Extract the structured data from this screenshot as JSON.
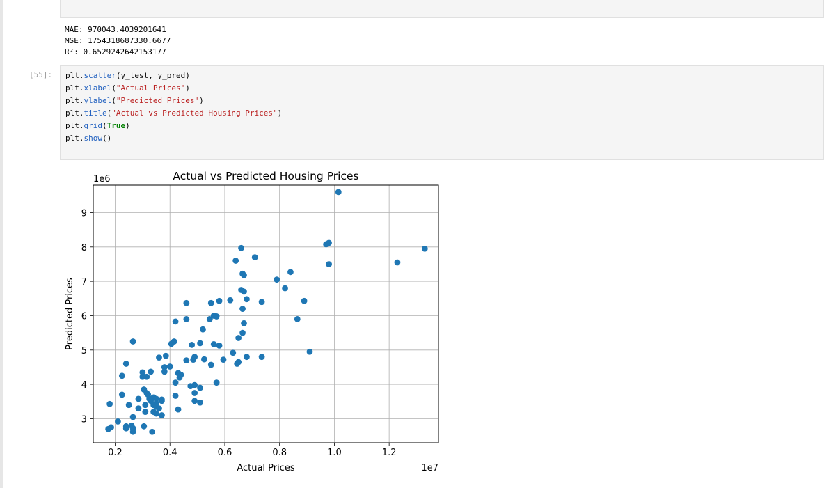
{
  "output": {
    "mae": "MAE: 970043.4039201641",
    "mse": "MSE: 1754318687330.6677",
    "r2": "R²: 0.6529242642153177"
  },
  "cell": {
    "prompt": "[55]:",
    "lines": [
      [
        {
          "t": "plt",
          "c": "obj"
        },
        {
          "t": ".",
          "c": "punct"
        },
        {
          "t": "scatter",
          "c": "fn"
        },
        {
          "t": "(y_test, y_pred)",
          "c": "punct"
        }
      ],
      [
        {
          "t": "plt",
          "c": "obj"
        },
        {
          "t": ".",
          "c": "punct"
        },
        {
          "t": "xlabel",
          "c": "fn"
        },
        {
          "t": "(",
          "c": "punct"
        },
        {
          "t": "\"Actual Prices\"",
          "c": "str"
        },
        {
          "t": ")",
          "c": "punct"
        }
      ],
      [
        {
          "t": "plt",
          "c": "obj"
        },
        {
          "t": ".",
          "c": "punct"
        },
        {
          "t": "ylabel",
          "c": "fn"
        },
        {
          "t": "(",
          "c": "punct"
        },
        {
          "t": "\"Predicted Prices\"",
          "c": "str"
        },
        {
          "t": ")",
          "c": "punct"
        }
      ],
      [
        {
          "t": "plt",
          "c": "obj"
        },
        {
          "t": ".",
          "c": "punct"
        },
        {
          "t": "title",
          "c": "fn"
        },
        {
          "t": "(",
          "c": "punct"
        },
        {
          "t": "\"Actual vs Predicted Housing Prices\"",
          "c": "str"
        },
        {
          "t": ")",
          "c": "punct"
        }
      ],
      [
        {
          "t": "plt",
          "c": "obj"
        },
        {
          "t": ".",
          "c": "punct"
        },
        {
          "t": "grid",
          "c": "fn"
        },
        {
          "t": "(",
          "c": "punct"
        },
        {
          "t": "True",
          "c": "kw"
        },
        {
          "t": ")",
          "c": "punct"
        }
      ],
      [
        {
          "t": "plt",
          "c": "obj"
        },
        {
          "t": ".",
          "c": "punct"
        },
        {
          "t": "show",
          "c": "fn"
        },
        {
          "t": "()",
          "c": "punct"
        }
      ]
    ]
  },
  "chart_data": {
    "type": "scatter",
    "title": "Actual vs Predicted Housing Prices",
    "xlabel": "Actual Prices",
    "ylabel": "Predicted Prices",
    "x_offset_label": "1e7",
    "y_offset_label": "1e6",
    "xlim": [
      0.12,
      1.38
    ],
    "ylim": [
      2.3,
      9.8
    ],
    "xticks": [
      0.2,
      0.4,
      0.6,
      0.8,
      1.0,
      1.2
    ],
    "xtick_labels": [
      "0.2",
      "0.4",
      "0.6",
      "0.8",
      "1.0",
      "1.2"
    ],
    "yticks": [
      3,
      4,
      5,
      6,
      7,
      8,
      9
    ],
    "ytick_labels": [
      "3",
      "4",
      "5",
      "6",
      "7",
      "8",
      "9"
    ],
    "grid": true,
    "marker_color": "#1f77b4",
    "points": [
      [
        1.015,
        9.6
      ],
      [
        1.33,
        7.95
      ],
      [
        1.23,
        7.55
      ],
      [
        0.98,
        8.12
      ],
      [
        0.97,
        8.08
      ],
      [
        0.98,
        7.5
      ],
      [
        0.66,
        7.97
      ],
      [
        0.71,
        7.7
      ],
      [
        0.64,
        7.6
      ],
      [
        0.84,
        7.27
      ],
      [
        0.79,
        7.05
      ],
      [
        0.82,
        6.8
      ],
      [
        0.665,
        7.22
      ],
      [
        0.67,
        7.18
      ],
      [
        0.66,
        6.75
      ],
      [
        0.67,
        6.7
      ],
      [
        0.68,
        6.48
      ],
      [
        0.62,
        6.45
      ],
      [
        0.58,
        6.43
      ],
      [
        0.55,
        6.37
      ],
      [
        0.46,
        6.37
      ],
      [
        0.735,
        6.4
      ],
      [
        0.89,
        6.43
      ],
      [
        0.665,
        6.2
      ],
      [
        0.56,
        6.0
      ],
      [
        0.57,
        5.98
      ],
      [
        0.545,
        5.9
      ],
      [
        0.46,
        5.9
      ],
      [
        0.42,
        5.83
      ],
      [
        0.865,
        5.9
      ],
      [
        0.67,
        5.78
      ],
      [
        0.52,
        5.6
      ],
      [
        0.665,
        5.5
      ],
      [
        0.65,
        5.35
      ],
      [
        0.265,
        5.25
      ],
      [
        0.415,
        5.25
      ],
      [
        0.405,
        5.18
      ],
      [
        0.51,
        5.2
      ],
      [
        0.48,
        5.15
      ],
      [
        0.56,
        5.17
      ],
      [
        0.58,
        5.13
      ],
      [
        0.91,
        4.95
      ],
      [
        0.63,
        4.92
      ],
      [
        0.385,
        4.83
      ],
      [
        0.36,
        4.78
      ],
      [
        0.49,
        4.8
      ],
      [
        0.485,
        4.72
      ],
      [
        0.46,
        4.7
      ],
      [
        0.525,
        4.73
      ],
      [
        0.595,
        4.72
      ],
      [
        0.68,
        4.8
      ],
      [
        0.735,
        4.8
      ],
      [
        0.65,
        4.65
      ],
      [
        0.645,
        4.6
      ],
      [
        0.24,
        4.6
      ],
      [
        0.55,
        4.57
      ],
      [
        0.38,
        4.5
      ],
      [
        0.4,
        4.52
      ],
      [
        0.38,
        4.37
      ],
      [
        0.33,
        4.37
      ],
      [
        0.3,
        4.35
      ],
      [
        0.43,
        4.33
      ],
      [
        0.44,
        4.28
      ],
      [
        0.225,
        4.25
      ],
      [
        0.3,
        4.22
      ],
      [
        0.315,
        4.22
      ],
      [
        0.435,
        4.2
      ],
      [
        0.42,
        4.05
      ],
      [
        0.57,
        4.05
      ],
      [
        0.475,
        3.95
      ],
      [
        0.49,
        3.98
      ],
      [
        0.51,
        3.9
      ],
      [
        0.305,
        3.85
      ],
      [
        0.315,
        3.75
      ],
      [
        0.49,
        3.75
      ],
      [
        0.225,
        3.7
      ],
      [
        0.32,
        3.7
      ],
      [
        0.34,
        3.62
      ],
      [
        0.42,
        3.67
      ],
      [
        0.285,
        3.58
      ],
      [
        0.325,
        3.58
      ],
      [
        0.35,
        3.58
      ],
      [
        0.37,
        3.56
      ],
      [
        0.33,
        3.52
      ],
      [
        0.37,
        3.52
      ],
      [
        0.49,
        3.52
      ],
      [
        0.51,
        3.47
      ],
      [
        0.35,
        3.45
      ],
      [
        0.25,
        3.4
      ],
      [
        0.34,
        3.4
      ],
      [
        0.31,
        3.4
      ],
      [
        0.35,
        3.35
      ],
      [
        0.285,
        3.3
      ],
      [
        0.36,
        3.3
      ],
      [
        0.31,
        3.2
      ],
      [
        0.34,
        3.2
      ],
      [
        0.35,
        3.15
      ],
      [
        0.37,
        3.1
      ],
      [
        0.43,
        3.27
      ],
      [
        0.265,
        3.05
      ],
      [
        0.18,
        3.43
      ],
      [
        0.21,
        2.92
      ],
      [
        0.24,
        2.78
      ],
      [
        0.26,
        2.8
      ],
      [
        0.24,
        2.72
      ],
      [
        0.265,
        2.72
      ],
      [
        0.305,
        2.78
      ],
      [
        0.185,
        2.75
      ],
      [
        0.175,
        2.7
      ],
      [
        0.265,
        2.62
      ],
      [
        0.335,
        2.62
      ]
    ]
  }
}
